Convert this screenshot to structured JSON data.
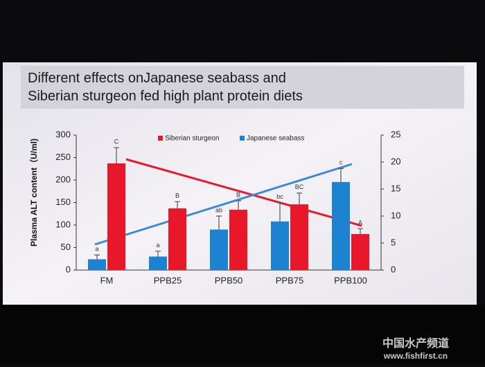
{
  "chart_data": {
    "type": "bar",
    "title": "Different effects onJapanese seabass and Siberian sturgeon fed high plant protein diets",
    "y_label": "Plasma ALT content（U/ml)",
    "categories": [
      "FM",
      "PPB25",
      "PPB50",
      "PPB75",
      "PPB100"
    ],
    "series": [
      {
        "name": "Siberian sturgeon",
        "color": "#e8182a",
        "axis": "y",
        "values": [
          237,
          137,
          134,
          146,
          80
        ],
        "errors": [
          35,
          15,
          20,
          25,
          12
        ],
        "labels": [
          "C",
          "B",
          "B",
          "BC",
          "A"
        ]
      },
      {
        "name": "Japanese seabass",
        "color": "#1e82d2",
        "axis": "y2",
        "values": [
          2,
          2.5,
          7.5,
          9,
          16.3
        ],
        "errors": [
          0.8,
          1,
          2.5,
          3.5,
          2.5
        ],
        "labels": [
          "a",
          "a",
          "ab",
          "bc",
          "c"
        ]
      }
    ],
    "ylim": [
      0,
      300
    ],
    "yticks": [
      0,
      50,
      100,
      150,
      200,
      250,
      300
    ],
    "y2lim": [
      0,
      25
    ],
    "y2ticks": [
      0,
      5,
      10,
      15,
      20,
      25
    ],
    "watermark": [
      "中国水产频道",
      "www.fishfirst.cn"
    ]
  }
}
